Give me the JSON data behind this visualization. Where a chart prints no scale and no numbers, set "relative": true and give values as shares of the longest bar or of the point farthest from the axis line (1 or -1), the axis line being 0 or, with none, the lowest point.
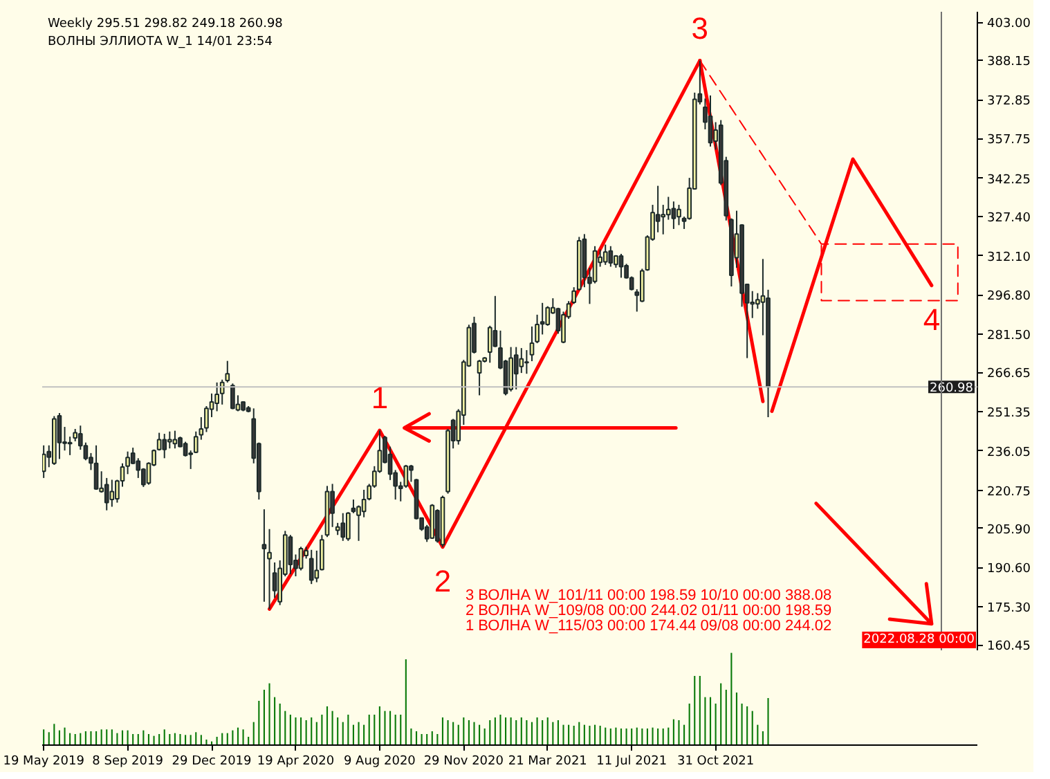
{
  "chart_data": [
    {
      "type": "candlestick",
      "title": "Weekly 295.51 298.82 249.18 260.98",
      "subtitle": "ВОЛНЫ ЭЛЛИОТА W_1 14/01 23:54",
      "x": [
        "2019-05-19",
        "2019-05-26",
        "2019-06-02",
        "2019-06-09",
        "2019-06-16",
        "2019-06-23",
        "2019-06-30",
        "2019-07-07",
        "2019-07-14",
        "2019-07-21",
        "2019-07-28",
        "2019-08-04",
        "2019-08-11",
        "2019-08-18",
        "2019-08-25",
        "2019-09-01",
        "2019-09-08",
        "2019-09-15",
        "2019-09-22",
        "2019-09-29",
        "2019-10-06",
        "2019-10-13",
        "2019-10-20",
        "2019-10-27",
        "2019-11-03",
        "2019-11-10",
        "2019-11-17",
        "2019-11-24",
        "2019-12-01",
        "2019-12-08",
        "2019-12-15",
        "2019-12-22",
        "2019-12-29",
        "2020-01-05",
        "2020-01-12",
        "2020-01-19",
        "2020-01-26",
        "2020-02-02",
        "2020-02-09",
        "2020-02-16",
        "2020-02-23",
        "2020-03-01",
        "2020-03-08",
        "2020-03-15",
        "2020-03-22",
        "2020-03-29",
        "2020-04-05",
        "2020-04-12",
        "2020-04-19",
        "2020-04-26",
        "2020-05-03",
        "2020-05-10",
        "2020-05-17",
        "2020-05-24",
        "2020-05-31",
        "2020-06-07",
        "2020-06-14",
        "2020-06-21",
        "2020-06-28",
        "2020-07-05",
        "2020-07-12",
        "2020-07-19",
        "2020-07-26",
        "2020-08-02",
        "2020-08-09",
        "2020-08-16",
        "2020-08-23",
        "2020-08-30",
        "2020-09-06",
        "2020-09-13",
        "2020-09-20",
        "2020-09-27",
        "2020-10-04",
        "2020-10-11",
        "2020-10-18",
        "2020-10-25",
        "2020-11-01",
        "2020-11-08",
        "2020-11-15",
        "2020-11-22",
        "2020-11-29",
        "2020-12-06",
        "2020-12-13",
        "2020-12-20",
        "2020-12-27",
        "2021-01-03",
        "2021-01-10",
        "2021-01-17",
        "2021-01-24",
        "2021-01-31",
        "2021-02-07",
        "2021-02-14",
        "2021-02-21",
        "2021-02-28",
        "2021-03-07",
        "2021-03-14",
        "2021-03-21",
        "2021-03-28",
        "2021-04-04",
        "2021-04-11",
        "2021-04-18",
        "2021-04-25",
        "2021-05-02",
        "2021-05-09",
        "2021-05-16",
        "2021-05-23",
        "2021-05-30",
        "2021-06-06",
        "2021-06-13",
        "2021-06-20",
        "2021-06-27",
        "2021-07-04",
        "2021-07-11",
        "2021-07-18",
        "2021-07-25",
        "2021-08-01",
        "2021-08-08",
        "2021-08-15",
        "2021-08-22",
        "2021-08-29",
        "2021-09-05",
        "2021-09-12",
        "2021-09-19",
        "2021-09-26",
        "2021-10-03",
        "2021-10-10",
        "2021-10-17",
        "2021-10-24",
        "2021-10-31",
        "2021-11-07",
        "2021-11-14",
        "2021-11-21",
        "2021-11-28",
        "2021-12-05",
        "2021-12-12",
        "2021-12-19",
        "2021-12-26",
        "2022-01-02",
        "2022-01-09"
      ],
      "ohlc": [
        [
          228.1,
          238.2,
          225.5,
          234.7
        ],
        [
          235.8,
          238.2,
          229.7,
          233.6
        ],
        [
          231.2,
          249.6,
          230.6,
          248.5
        ],
        [
          249.7,
          250.8,
          232.9,
          239.3
        ],
        [
          239.5,
          245.4,
          236.2,
          239.0
        ],
        [
          239.3,
          241.6,
          234.4,
          238.9
        ],
        [
          241.1,
          244.6,
          239.8,
          243.1
        ],
        [
          242.7,
          245.9,
          236.5,
          238.1
        ],
        [
          238.1,
          239.3,
          232.4,
          233.1
        ],
        [
          233.5,
          235.2,
          228.6,
          231.3
        ],
        [
          231.2,
          238.2,
          220.9,
          221.2
        ],
        [
          220.2,
          228.1,
          219.8,
          221.5
        ],
        [
          222.9,
          225.5,
          212.9,
          215.9
        ],
        [
          217.1,
          224.8,
          214.3,
          220.2
        ],
        [
          217.4,
          224.8,
          215.9,
          224.3
        ],
        [
          224.4,
          231.2,
          222.1,
          229.8
        ],
        [
          230.1,
          235.8,
          227.0,
          233.5
        ],
        [
          235.2,
          237.3,
          230.9,
          231.2
        ],
        [
          232.1,
          233.2,
          225.5,
          228.6
        ],
        [
          228.9,
          229.3,
          222.0,
          222.9
        ],
        [
          223.5,
          231.6,
          222.9,
          231.2
        ],
        [
          230.6,
          236.6,
          230.1,
          236.2
        ],
        [
          236.6,
          243.1,
          236.2,
          240.4
        ],
        [
          240.4,
          242.7,
          233.2,
          236.6
        ],
        [
          239.6,
          243.6,
          237.0,
          240.4
        ],
        [
          238.9,
          243.9,
          237.0,
          240.4
        ],
        [
          241.1,
          241.6,
          237.5,
          237.7
        ],
        [
          238.9,
          239.6,
          233.9,
          234.3
        ],
        [
          234.7,
          236.2,
          229.0,
          235.2
        ],
        [
          235.5,
          243.6,
          235.2,
          241.6
        ],
        [
          242.3,
          249.2,
          240.4,
          244.6
        ],
        [
          245.0,
          253.5,
          243.4,
          252.6
        ],
        [
          252.3,
          258.4,
          249.2,
          255.1
        ],
        [
          254.6,
          262.7,
          251.5,
          258.1
        ],
        [
          258.4,
          263.8,
          254.1,
          262.7
        ],
        [
          263.5,
          271.1,
          262.7,
          266.1
        ],
        [
          261.5,
          262.3,
          252.3,
          252.6
        ],
        [
          252.0,
          257.7,
          251.5,
          254.2
        ],
        [
          255.1,
          255.4,
          251.5,
          252.0
        ],
        [
          252.8,
          253.5,
          251.1,
          251.5
        ],
        [
          248.5,
          252.6,
          231.2,
          233.2
        ],
        [
          238.9,
          239.3,
          217.1,
          220.2
        ],
        [
          199.5,
          213.3,
          177.3,
          198.0
        ],
        [
          194.1,
          205.6,
          174.44,
          196.4
        ],
        [
          188.5,
          192.6,
          178.8,
          181.6
        ],
        [
          177.3,
          193.4,
          176.0,
          190.3
        ],
        [
          188.0,
          204.9,
          187.2,
          203.3
        ],
        [
          202.5,
          203.3,
          188.0,
          191.8
        ],
        [
          193.4,
          195.7,
          187.2,
          190.3
        ],
        [
          190.3,
          198.7,
          189.5,
          198.0
        ],
        [
          195.3,
          198.7,
          194.1,
          197.2
        ],
        [
          194.1,
          197.5,
          184.2,
          185.7
        ],
        [
          186.5,
          197.2,
          184.9,
          189.5
        ],
        [
          189.8,
          203.3,
          189.5,
          201.4
        ],
        [
          203.3,
          222.4,
          202.5,
          220.2
        ],
        [
          220.2,
          223.2,
          206.4,
          211.8
        ],
        [
          205.1,
          208.0,
          203.3,
          206.4
        ],
        [
          207.9,
          211.8,
          201.0,
          202.5
        ],
        [
          201.8,
          212.2,
          201.0,
          211.8
        ],
        [
          213.7,
          217.1,
          211.8,
          212.5
        ],
        [
          211.0,
          214.8,
          201.0,
          214.3
        ],
        [
          212.5,
          220.9,
          210.2,
          217.1
        ],
        [
          217.4,
          223.2,
          216.8,
          222.4
        ],
        [
          222.4,
          230.1,
          221.7,
          228.1
        ],
        [
          228.1,
          244.02,
          227.5,
          236.2
        ],
        [
          241.3,
          241.9,
          231.2,
          231.6
        ],
        [
          234.7,
          237.7,
          224.7,
          227.0
        ],
        [
          227.5,
          228.6,
          217.1,
          222.4
        ],
        [
          222.4,
          224.0,
          216.4,
          221.4
        ],
        [
          222.4,
          230.6,
          221.7,
          230.1
        ],
        [
          230.1,
          230.6,
          224.0,
          228.6
        ],
        [
          224.8,
          225.1,
          209.4,
          209.7
        ],
        [
          209.9,
          210.1,
          204.9,
          205.6
        ],
        [
          206.4,
          207.2,
          200.6,
          201.8
        ],
        [
          202.1,
          215.3,
          201.8,
          214.8
        ],
        [
          212.8,
          213.3,
          200.3,
          201.0
        ],
        [
          199.5,
          218.6,
          198.59,
          217.9
        ],
        [
          220.2,
          244.6,
          219.4,
          243.9
        ],
        [
          248.0,
          248.5,
          237.0,
          240.0
        ],
        [
          240.0,
          252.3,
          238.5,
          251.5
        ],
        [
          250.0,
          271.5,
          246.2,
          270.7
        ],
        [
          269.2,
          285.2,
          268.8,
          284.1
        ],
        [
          285.7,
          288.3,
          274.0,
          274.5
        ],
        [
          266.4,
          271.5,
          257.7,
          271.0
        ],
        [
          271.0,
          272.6,
          270.5,
          272.2
        ],
        [
          274.5,
          284.8,
          270.4,
          284.1
        ],
        [
          282.9,
          296.4,
          276.5,
          276.8
        ],
        [
          276.1,
          282.9,
          267.9,
          268.4
        ],
        [
          271.0,
          271.5,
          257.7,
          258.4
        ],
        [
          260.0,
          276.5,
          259.2,
          272.2
        ],
        [
          273.4,
          276.5,
          260.0,
          266.1
        ],
        [
          268.9,
          276.1,
          266.4,
          271.9
        ],
        [
          270.4,
          275.3,
          266.1,
          270.7
        ],
        [
          273.5,
          284.5,
          271.0,
          278.0
        ],
        [
          278.6,
          289.1,
          278.0,
          285.3
        ],
        [
          286.3,
          293.7,
          281.4,
          285.5
        ],
        [
          285.3,
          292.4,
          284.8,
          291.8
        ],
        [
          289.8,
          295.5,
          289.4,
          291.8
        ],
        [
          291.4,
          291.8,
          281.7,
          282.9
        ],
        [
          278.4,
          290.3,
          278.0,
          289.1
        ],
        [
          288.3,
          294.4,
          287.5,
          293.3
        ],
        [
          293.9,
          299.8,
          293.3,
          298.3
        ],
        [
          299.0,
          319.4,
          298.6,
          317.9
        ],
        [
          318.5,
          320.5,
          299.8,
          303.6
        ],
        [
          303.6,
          307.4,
          293.3,
          301.3
        ],
        [
          302.1,
          315.8,
          301.3,
          313.9
        ],
        [
          309.5,
          314.5,
          307.8,
          311.5
        ],
        [
          309.7,
          316.4,
          308.5,
          313.5
        ],
        [
          313.9,
          315.8,
          307.8,
          309.3
        ],
        [
          308.7,
          312.3,
          307.4,
          312.0
        ],
        [
          312.0,
          312.8,
          303.5,
          307.8
        ],
        [
          308.2,
          308.9,
          303.2,
          303.5
        ],
        [
          303.5,
          304.0,
          298.6,
          299.0
        ],
        [
          297.9,
          299.0,
          290.3,
          296.7
        ],
        [
          294.4,
          307.0,
          294.0,
          306.2
        ],
        [
          306.6,
          320.0,
          306.2,
          319.4
        ],
        [
          318.5,
          331.9,
          317.9,
          328.9
        ],
        [
          328.1,
          339.3,
          321.2,
          325.5
        ],
        [
          327.3,
          331.9,
          320.4,
          328.1
        ],
        [
          328.1,
          335.0,
          326.1,
          330.1
        ],
        [
          330.4,
          333.2,
          322.5,
          326.6
        ],
        [
          327.3,
          331.9,
          324.0,
          330.1
        ],
        [
          326.6,
          327.3,
          322.5,
          325.5
        ],
        [
          326.6,
          342.4,
          326.1,
          338.4
        ],
        [
          338.1,
          375.6,
          337.8,
          373.0
        ],
        [
          375.1,
          388.08,
          371.0,
          372.1
        ],
        [
          369.9,
          373.3,
          361.3,
          364.1
        ],
        [
          366.4,
          374.5,
          354.6,
          356.1
        ],
        [
          356.7,
          364.1,
          353.4,
          361.0
        ],
        [
          362.9,
          364.9,
          339.6,
          340.4
        ],
        [
          349.1,
          350.6,
          325.8,
          327.7
        ],
        [
          326.1,
          326.6,
          300.1,
          304.4
        ],
        [
          311.3,
          329.6,
          307.4,
          320.5
        ],
        [
          324.0,
          324.3,
          292.2,
          297.5
        ],
        [
          300.9,
          301.0,
          272.2,
          293.7
        ],
        [
          293.3,
          298.3,
          287.8,
          293.9
        ],
        [
          293.3,
          297.5,
          291.4,
          294.9
        ],
        [
          294.0,
          310.8,
          281.1,
          296.4
        ],
        [
          295.51,
          298.82,
          249.18,
          260.98
        ]
      ],
      "colors": [
        "#f2f2a2",
        "#383838",
        "#f2f2a2",
        "#383838",
        "#383838",
        "#383838",
        "#f2f2a2",
        "#383838",
        "#383838",
        "#383838",
        "#383838",
        "#f2f2a2",
        "#383838",
        "#f2f2a2",
        "#f2f2a2",
        "#f2f2a2",
        "#f2f2a2",
        "#383838",
        "#383838",
        "#383838",
        "#f2f2a2",
        "#f2f2a2",
        "#f2f2a2",
        "#383838",
        "#f2f2a2",
        "#f2f2a2",
        "#383838",
        "#383838",
        "#f2f2a2",
        "#f2f2a2",
        "#f2f2a2",
        "#f2f2a2",
        "#f2f2a2",
        "#f2f2a2",
        "#f2f2a2",
        "#f2f2a2",
        "#383838",
        "#f2f2a2",
        "#383838",
        "#383838",
        "#383838",
        "#383838",
        "#383838",
        "#f2f2a2",
        "#383838",
        "#f2f2a2",
        "#f2f2a2",
        "#383838",
        "#383838",
        "#f2f2a2",
        "#f2f2a2",
        "#383838",
        "#f2f2a2",
        "#f2f2a2",
        "#f2f2a2",
        "#383838",
        "#f2f2a2",
        "#383838",
        "#f2f2a2",
        "#383838",
        "#f2f2a2",
        "#f2f2a2",
        "#f2f2a2",
        "#f2f2a2",
        "#f2f2a2",
        "#383838",
        "#383838",
        "#383838",
        "#383838",
        "#f2f2a2",
        "#383838",
        "#383838",
        "#383838",
        "#383838",
        "#f2f2a2",
        "#383838",
        "#f2f2a2",
        "#f2f2a2",
        "#383838",
        "#f2f2a2",
        "#f2f2a2",
        "#f2f2a2",
        "#383838",
        "#f2f2a2",
        "#f2f2a2",
        "#f2f2a2",
        "#383838",
        "#383838",
        "#383838",
        "#f2f2a2",
        "#383838",
        "#f2f2a2",
        "#f2f2a2",
        "#f2f2a2",
        "#f2f2a2",
        "#383838",
        "#f2f2a2",
        "#f2f2a2",
        "#383838",
        "#f2f2a2",
        "#f2f2a2",
        "#f2f2a2",
        "#f2f2a2",
        "#383838",
        "#383838",
        "#f2f2a2",
        "#f2f2a2",
        "#f2f2a2",
        "#383838",
        "#f2f2a2",
        "#383838",
        "#383838",
        "#383838",
        "#383838",
        "#f2f2a2",
        "#f2f2a2",
        "#f2f2a2",
        "#383838",
        "#f2f2a2",
        "#f2f2a2",
        "#383838",
        "#f2f2a2",
        "#383838",
        "#f2f2a2",
        "#f2f2a2",
        "#383838",
        "#383838",
        "#383838",
        "#f2f2a2",
        "#383838",
        "#383838",
        "#383838",
        "#f2f2a2",
        "#383838",
        "#383838",
        "#f2f2a2",
        "#f2f2a2",
        "#f2f2a2",
        "#383838"
      ],
      "series": [
        {
          "type": "line",
          "color": "#ff0000",
          "x": [
            "2020-03-15",
            "2020-08-09",
            "2020-11-01",
            "2021-10-10"
          ],
          "values": [
            174.44,
            244.02,
            198.59,
            388.08
          ]
        },
        {
          "type": "line",
          "color": "#ff0000",
          "x": [
            "2021-10-10",
            "2022-01-02"
          ],
          "values": [
            388.08,
            255.3
          ]
        },
        {
          "type": "line",
          "color": "#ff0000",
          "x": [
            "2022-01-14",
            "2022-05-02",
            "2022-08-15"
          ],
          "values": [
            251.5,
            349.7,
            300.5
          ]
        },
        {
          "type": "line",
          "color": "#ff0000",
          "line_style": "dashed",
          "x": [
            "2021-10-10",
            "2022-03-21",
            "2022-09-19",
            "2022-09-19",
            "2022-03-21",
            "2022-03-21"
          ],
          "values": [
            388.08,
            316.6,
            316.6,
            294.6,
            294.6,
            316.6
          ]
        },
        {
          "type": "line",
          "color": "#ff0000",
          "x": [
            "2021-09-08",
            "2020-09-11",
            "2020-10-14",
            "2020-09-11",
            "2020-10-14"
          ],
          "values": [
            245.0,
            245.0,
            250.5,
            245.0,
            239.9
          ]
        },
        {
          "type": "line",
          "color": "#ff0000",
          "x": [
            "2022-03-14",
            "2022-08-15",
            "2022-06-20",
            "2022-08-15",
            "2022-08-08"
          ],
          "values": [
            215.6,
            168.7,
            170.5,
            168.7,
            184.3
          ]
        }
      ],
      "ref_lines": [
        {
          "axis": "y",
          "value": 260.98,
          "label": "260.98",
          "color": "#c0c0c0"
        },
        {
          "axis": "x",
          "value": "2022-08-28",
          "label": "2022.08.28 00:00",
          "color": "#707070"
        }
      ],
      "annotations": [
        "3 ВОЛНА W_101/11 00:00 198.59 10/10 00:00 388.08",
        "2 ВОЛНА W_109/08 00:00 244.02 01/11 00:00 198.59",
        "1 ВОЛНА W_115/03 00:00 174.44 09/08 00:00 244.02",
        {
          "text": "1",
          "x": "2020-08-09",
          "y": 244.02
        },
        {
          "text": "2",
          "x": "2020-11-01",
          "y": 198.59
        },
        {
          "text": "3",
          "x": "2021-10-10",
          "y": 388.08
        },
        {
          "text": "4",
          "x": "2022-08-15",
          "y": 300.5
        }
      ],
      "xlim": [
        "2019-05-17",
        "2022-10-15"
      ],
      "ylim": [
        158.1,
        407.1
      ],
      "yticks": [
        {
          "value": 403,
          "label": "403.00"
        },
        388.15,
        372.85,
        357.75,
        342.25,
        {
          "value": 327.4,
          "label": "327.40"
        },
        {
          "value": 312.1,
          "label": "312.10"
        },
        {
          "value": 296.8,
          "label": "296.80"
        },
        {
          "value": 281.5,
          "label": "281.50"
        },
        266.65,
        251.35,
        236.05,
        220.75,
        {
          "value": 205.9,
          "label": "205.90"
        },
        {
          "value": 190.6,
          "label": "190.60"
        },
        {
          "value": 175.3,
          "label": "175.30"
        },
        160.45
      ],
      "tick_labels": "y",
      "grid": false
    },
    {
      "type": "bar",
      "relative": true,
      "color": "#0a7a0a",
      "x": [
        "2019-05-19",
        "2019-05-26",
        "2019-06-02",
        "2019-06-09",
        "2019-06-16",
        "2019-06-23",
        "2019-06-30",
        "2019-07-07",
        "2019-07-14",
        "2019-07-21",
        "2019-07-28",
        "2019-08-04",
        "2019-08-11",
        "2019-08-18",
        "2019-08-25",
        "2019-09-01",
        "2019-09-08",
        "2019-09-15",
        "2019-09-22",
        "2019-09-29",
        "2019-10-06",
        "2019-10-13",
        "2019-10-20",
        "2019-10-27",
        "2019-11-03",
        "2019-11-10",
        "2019-11-17",
        "2019-11-24",
        "2019-12-01",
        "2019-12-08",
        "2019-12-15",
        "2019-12-22",
        "2019-12-29",
        "2020-01-05",
        "2020-01-12",
        "2020-01-19",
        "2020-01-26",
        "2020-02-02",
        "2020-02-09",
        "2020-02-16",
        "2020-02-23",
        "2020-03-01",
        "2020-03-08",
        "2020-03-15",
        "2020-03-22",
        "2020-03-29",
        "2020-04-05",
        "2020-04-12",
        "2020-04-19",
        "2020-04-26",
        "2020-05-03",
        "2020-05-10",
        "2020-05-17",
        "2020-05-24",
        "2020-05-31",
        "2020-06-07",
        "2020-06-14",
        "2020-06-21",
        "2020-06-28",
        "2020-07-05",
        "2020-07-12",
        "2020-07-19",
        "2020-07-26",
        "2020-08-02",
        "2020-08-09",
        "2020-08-16",
        "2020-08-23",
        "2020-08-30",
        "2020-09-06",
        "2020-09-13",
        "2020-09-20",
        "2020-09-27",
        "2020-10-04",
        "2020-10-11",
        "2020-10-18",
        "2020-10-25",
        "2020-11-01",
        "2020-11-08",
        "2020-11-15",
        "2020-11-22",
        "2020-11-29",
        "2020-12-06",
        "2020-12-13",
        "2020-12-20",
        "2020-12-27",
        "2021-01-03",
        "2021-01-10",
        "2021-01-17",
        "2021-01-24",
        "2021-01-31",
        "2021-02-07",
        "2021-02-14",
        "2021-02-21",
        "2021-02-28",
        "2021-03-07",
        "2021-03-14",
        "2021-03-21",
        "2021-03-28",
        "2021-04-04",
        "2021-04-11",
        "2021-04-18",
        "2021-04-25",
        "2021-05-02",
        "2021-05-09",
        "2021-05-16",
        "2021-05-23",
        "2021-05-30",
        "2021-06-06",
        "2021-06-13",
        "2021-06-20",
        "2021-06-27",
        "2021-07-04",
        "2021-07-11",
        "2021-07-18",
        "2021-07-25",
        "2021-08-01",
        "2021-08-08",
        "2021-08-15",
        "2021-08-22",
        "2021-08-29",
        "2021-09-05",
        "2021-09-12",
        "2021-09-19",
        "2021-09-26",
        "2021-10-03",
        "2021-10-10",
        "2021-10-17",
        "2021-10-24",
        "2021-10-31",
        "2021-11-07",
        "2021-11-14",
        "2021-11-21",
        "2021-11-28",
        "2021-12-05",
        "2021-12-12",
        "2021-12-19",
        "2021-12-26",
        "2022-01-02",
        "2022-01-09"
      ],
      "values": [
        0.17,
        0.14,
        0.23,
        0.16,
        0.19,
        0.13,
        0.12,
        0.13,
        0.15,
        0.15,
        0.15,
        0.17,
        0.17,
        0.17,
        0.13,
        0.16,
        0.16,
        0.12,
        0.12,
        0.16,
        0.12,
        0.1,
        0.12,
        0.17,
        0.12,
        0.13,
        0.12,
        0.11,
        0.11,
        0.14,
        0.11,
        0.06,
        0.04,
        0.09,
        0.13,
        0.13,
        0.16,
        0.19,
        0.17,
        0.09,
        0.25,
        0.48,
        0.6,
        0.67,
        0.52,
        0.45,
        0.37,
        0.33,
        0.3,
        0.3,
        0.27,
        0.3,
        0.25,
        0.33,
        0.42,
        0.37,
        0.3,
        0.25,
        0.33,
        0.22,
        0.25,
        0.22,
        0.33,
        0.33,
        0.42,
        0.37,
        0.37,
        0.33,
        0.33,
        0.93,
        0.18,
        0.15,
        0.12,
        0.12,
        0.15,
        0.12,
        0.3,
        0.27,
        0.25,
        0.22,
        0.3,
        0.27,
        0.25,
        0.22,
        0.18,
        0.27,
        0.3,
        0.33,
        0.3,
        0.3,
        0.27,
        0.3,
        0.27,
        0.25,
        0.3,
        0.27,
        0.3,
        0.25,
        0.27,
        0.22,
        0.22,
        0.21,
        0.25,
        0.22,
        0.21,
        0.22,
        0.21,
        0.19,
        0.18,
        0.19,
        0.18,
        0.18,
        0.18,
        0.19,
        0.18,
        0.18,
        0.19,
        0.18,
        0.18,
        0.19,
        0.28,
        0.27,
        0.22,
        0.45,
        0.75,
        0.75,
        0.52,
        0.52,
        0.45,
        0.67,
        0.6,
        1,
        0.57,
        0.45,
        0.42,
        0.37,
        0.22,
        0.15,
        0.51
      ],
      "xlim": [
        "2019-05-17",
        "2022-10-15"
      ],
      "xticks": [
        {
          "value": "2019-05-19",
          "label": "19 May 2019"
        },
        {
          "value": "2019-09-08",
          "label": "8 Sep 2019"
        },
        {
          "value": "2019-12-29",
          "label": "29 Dec 2019"
        },
        {
          "value": "2020-04-19",
          "label": "19 Apr 2020"
        },
        {
          "value": "2020-08-09",
          "label": "9 Aug 2020"
        },
        {
          "value": "2020-11-29",
          "label": "29 Nov 2020"
        },
        {
          "value": "2021-03-21",
          "label": "21 Mar 2021"
        },
        {
          "value": "2021-07-11",
          "label": "11 Jul 2021"
        },
        {
          "value": "2021-10-31",
          "label": "31 Oct 2021"
        }
      ],
      "tick_labels": "x",
      "grid": false
    }
  ]
}
